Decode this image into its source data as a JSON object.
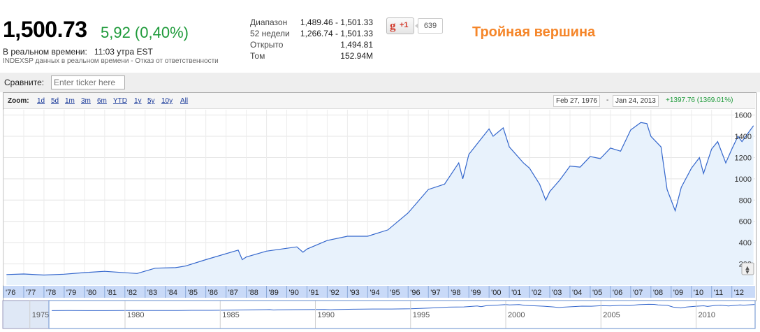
{
  "quote": {
    "price": "1,500.73",
    "change": "5,92 (0,40%)",
    "realtime_label": "В реальном времени:",
    "realtime_time": "11:03 утра EST",
    "disclaimer": "INDEXSP данных в реальном времени - Отказ от ответственности"
  },
  "stats": [
    {
      "label": "Диапазон",
      "value": "1,489.46 - 1,501.33"
    },
    {
      "label": "52 недели",
      "value": "1,266.74 - 1,501.33"
    },
    {
      "label": "Открыто",
      "value": "1,494.81"
    },
    {
      "label": "Том",
      "value": "152.94M"
    }
  ],
  "social": {
    "gplus_g": "g",
    "gplus_label": "+1",
    "gplus_count": "639"
  },
  "annotation": "Тройная вершина",
  "compare": {
    "label": "Сравните:",
    "placeholder": "Enter ticker here"
  },
  "zoom": {
    "label": "Zoom:",
    "options": [
      "1d",
      "5d",
      "1m",
      "3m",
      "6m",
      "YTD",
      "1y",
      "5y",
      "10y",
      "All"
    ],
    "from_date": "Feb 27, 1976",
    "separator": "-",
    "to_date": "Jan 24, 2013",
    "gain": "+1397.76 (1369.01%)"
  },
  "colors": {
    "line": "#3366cc",
    "fill": "#e8f2fc",
    "up": "#1e9a3a",
    "accent": "#f5862a",
    "axis_band": "#c9daf8"
  },
  "chart_data": {
    "type": "area",
    "x_unit": "year",
    "ylim": [
      0,
      1650
    ],
    "y_ticks": [
      200,
      400,
      600,
      800,
      1000,
      1200,
      1400,
      1600
    ],
    "x_tick_labels": [
      "'76",
      "'77",
      "'78",
      "'79",
      "'80",
      "'81",
      "'82",
      "'83",
      "'84",
      "'85",
      "'86",
      "'87",
      "'88",
      "'89",
      "'90",
      "'91",
      "'92",
      "'93",
      "'94",
      "'95",
      "'96",
      "'97",
      "'98",
      "'99",
      "'00",
      "'01",
      "'02",
      "'03",
      "'04",
      "'05",
      "'06",
      "'07",
      "'08",
      "'09",
      "'10",
      "'11",
      "'12"
    ],
    "nav_labels": [
      "1975",
      "1980",
      "1985",
      "1990",
      "1995",
      "2000",
      "2005",
      "2010"
    ],
    "series": [
      {
        "x": [
          1976.15,
          1977,
          1978,
          1979,
          1980,
          1981,
          1982.6,
          1983.5,
          1984.5,
          1985,
          1986,
          1987.6,
          1987.8,
          1988,
          1989,
          1990.5,
          1990.8,
          1991,
          1992,
          1993,
          1994,
          1995,
          1996,
          1997,
          1997.8,
          1998.5,
          1998.7,
          1999,
          1999.5,
          2000,
          2000.2,
          2000.7,
          2001,
          2001.7,
          2002,
          2002.5,
          2002.8,
          2003,
          2003.5,
          2004,
          2004.5,
          2005,
          2005.5,
          2006,
          2006.5,
          2007,
          2007.5,
          2007.8,
          2008,
          2008.5,
          2008.8,
          2009.2,
          2009.5,
          2010,
          2010.4,
          2010.6,
          2011,
          2011.3,
          2011.7,
          2012,
          2012.3,
          2012.5,
          2012.8,
          2013.07
        ],
        "y": [
          100,
          105,
          95,
          103,
          118,
          130,
          110,
          160,
          165,
          180,
          240,
          330,
          240,
          265,
          320,
          360,
          310,
          340,
          420,
          460,
          460,
          520,
          680,
          900,
          950,
          1150,
          1000,
          1230,
          1350,
          1470,
          1400,
          1480,
          1300,
          1150,
          1100,
          950,
          800,
          880,
          990,
          1120,
          1110,
          1210,
          1190,
          1290,
          1260,
          1460,
          1530,
          1520,
          1400,
          1300,
          900,
          700,
          920,
          1100,
          1200,
          1050,
          1280,
          1350,
          1150,
          1280,
          1400,
          1350,
          1430,
          1500
        ]
      }
    ]
  }
}
